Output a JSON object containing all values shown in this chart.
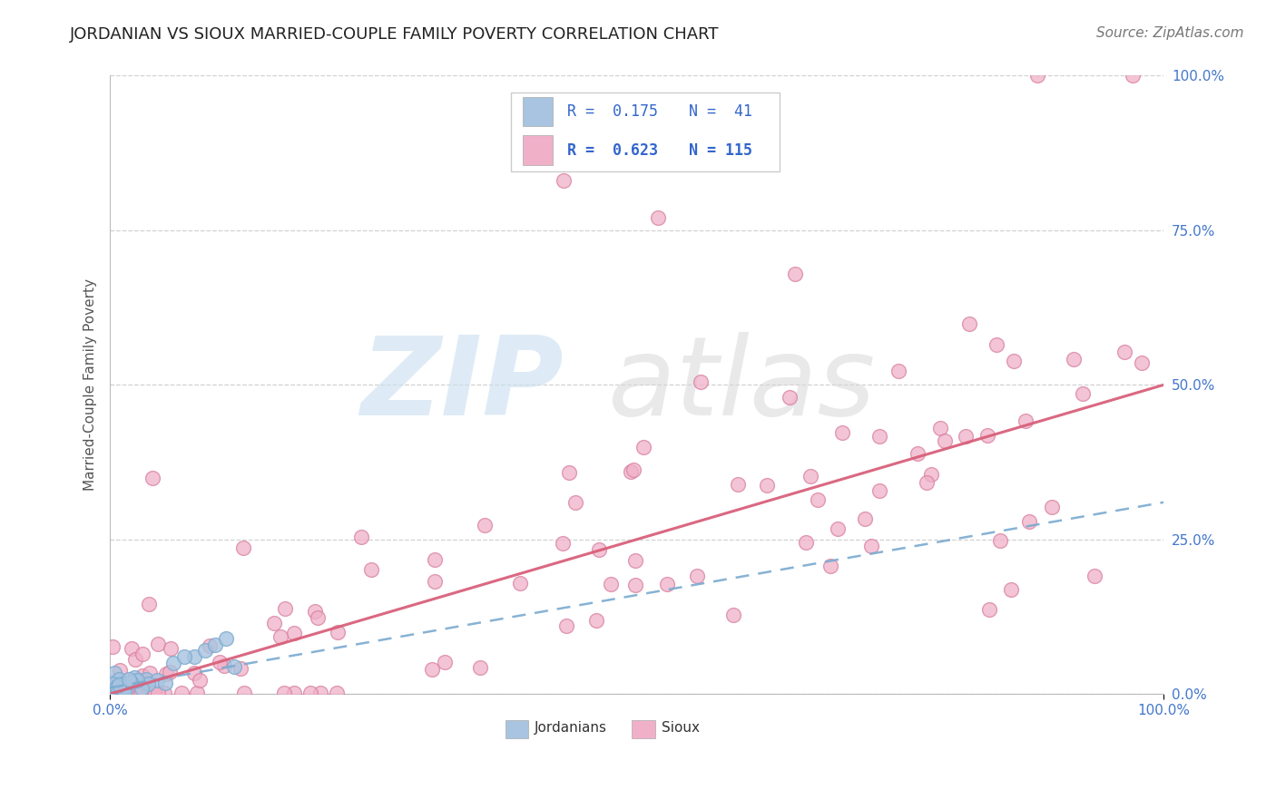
{
  "title": "JORDANIAN VS SIOUX MARRIED-COUPLE FAMILY POVERTY CORRELATION CHART",
  "source": "Source: ZipAtlas.com",
  "ylabel": "Married-Couple Family Poverty",
  "xlim": [
    0,
    1.0
  ],
  "ylim": [
    0,
    1.0
  ],
  "background_color": "#ffffff",
  "grid_color": "#cccccc",
  "legend_r1": "R = 0.175",
  "legend_n1": "N =  41",
  "legend_r2": "R = 0.623",
  "legend_n2": "N = 115",
  "jordanian_color": "#a8c4e0",
  "jordanian_edge_color": "#7aaad0",
  "sioux_color": "#f0b0c8",
  "sioux_edge_color": "#d880a0",
  "jordanian_line_color": "#7aaad0",
  "sioux_line_color": "#d8607a",
  "title_fontsize": 13,
  "tick_fontsize": 11,
  "tick_color": "#4477cc",
  "ylabel_fontsize": 11,
  "ylabel_color": "#555555",
  "source_fontsize": 11,
  "source_color": "#777777",
  "legend_text_color": "#3366cc",
  "legend_fontsize": 12,
  "watermark_zip_color": "#c8dff0",
  "watermark_atlas_color": "#d8d8d8",
  "sioux_slope": 0.5,
  "sioux_intercept": 0.0,
  "jordanian_slope": 0.3,
  "jordanian_intercept": 0.01
}
